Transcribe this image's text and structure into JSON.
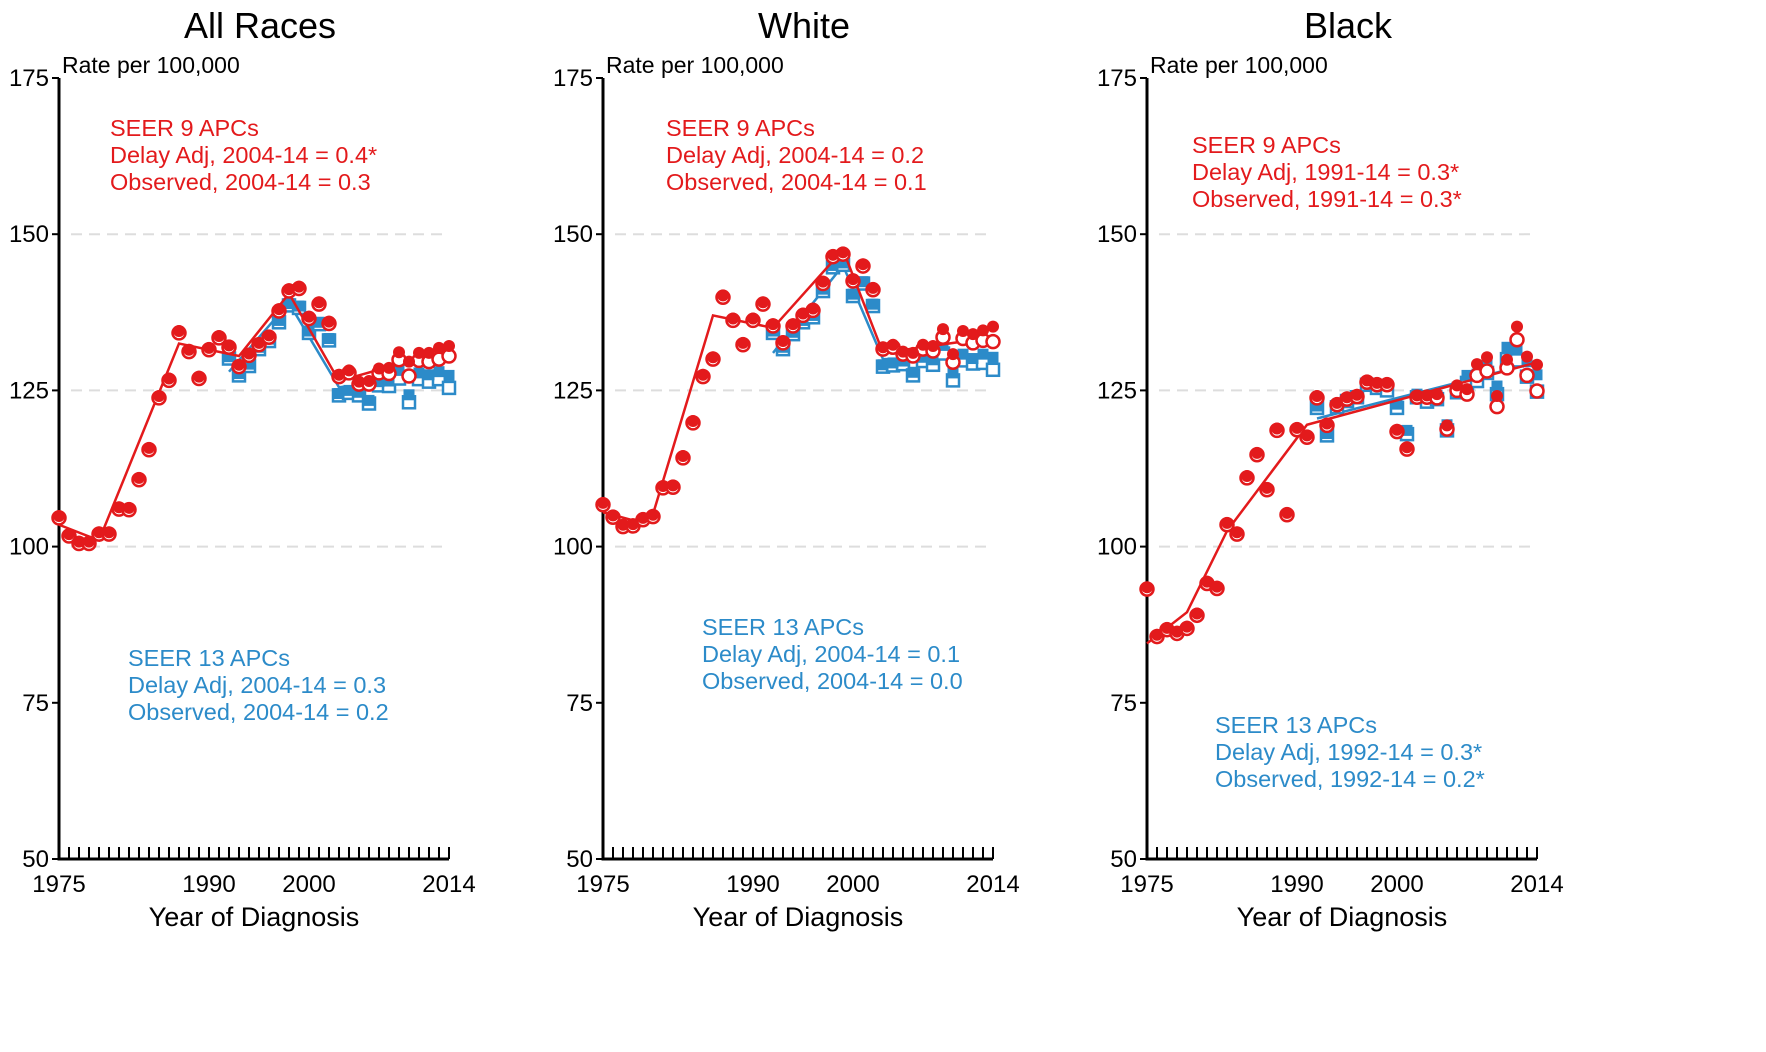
{
  "chart_data": [
    {
      "type": "scatter",
      "title": "All Races",
      "ylabel": "Rate per 100,000",
      "xlabel": "Year of Diagnosis",
      "xlim": [
        1975,
        2014
      ],
      "ylim": [
        50,
        175
      ],
      "xticks": [
        "1975",
        "1990",
        "2000",
        "2014"
      ],
      "yticks": [
        "50",
        "75",
        "100",
        "125",
        "150",
        "175"
      ],
      "grid": "dashed horizontal at 100, 125, 150",
      "annotations": {
        "seer9": [
          "SEER 9 APCs",
          "Delay Adj, 2004-14 = 0.4*",
          "Observed, 2004-14 = 0.3"
        ],
        "seer13": [
          "SEER 13 APCs",
          "Delay Adj, 2004-14 = 0.3",
          "Observed, 2004-14 = 0.2"
        ]
      },
      "seer9_delay_adj": {
        "x": [
          1975,
          1976,
          1977,
          1978,
          1979,
          1980,
          1981,
          1982,
          1983,
          1984,
          1985,
          1986,
          1987,
          1988,
          1989,
          1990,
          1991,
          1992,
          1993,
          1994,
          1995,
          1996,
          1997,
          1998,
          1999,
          2000,
          2001,
          2002,
          2003,
          2004,
          2005,
          2006,
          2007,
          2008,
          2009,
          2010,
          2011,
          2012,
          2013,
          2014
        ],
        "y": [
          104.9,
          102.0,
          100.8,
          100.8,
          102.3,
          102.3,
          106.3,
          106.2,
          111.0,
          115.8,
          124.1,
          126.9,
          134.5,
          131.5,
          127.2,
          131.8,
          133.7,
          132.2,
          129.1,
          130.9,
          132.6,
          133.8,
          138.0,
          141.2,
          141.6,
          136.8,
          139.1,
          136.0,
          127.5,
          128.2,
          126.4,
          126.5,
          128.5,
          128.6,
          131.1,
          129.6,
          131.0,
          131.0,
          131.8,
          132.1
        ]
      },
      "seer9_observed": {
        "x": [
          1975,
          1976,
          1977,
          1978,
          1979,
          1980,
          1981,
          1982,
          1983,
          1984,
          1985,
          1986,
          1987,
          1988,
          1989,
          1990,
          1991,
          1992,
          1993,
          1994,
          1995,
          1996,
          1997,
          1998,
          1999,
          2000,
          2001,
          2002,
          2003,
          2004,
          2005,
          2006,
          2007,
          2008,
          2009,
          2010,
          2011,
          2012,
          2013,
          2014
        ],
        "y": [
          104.6,
          101.7,
          100.5,
          100.5,
          102.0,
          102.0,
          106.0,
          105.9,
          110.7,
          115.5,
          123.8,
          126.6,
          134.2,
          131.2,
          126.9,
          131.5,
          133.4,
          131.9,
          128.8,
          130.6,
          132.3,
          133.5,
          137.7,
          140.9,
          141.3,
          136.5,
          138.8,
          135.7,
          127.2,
          127.8,
          126.0,
          126.0,
          127.8,
          127.7,
          129.9,
          127.3,
          129.8,
          129.6,
          130.0,
          130.5
        ]
      },
      "seer9_fit": {
        "x": [
          1975,
          1979,
          1987,
          1993,
          1998,
          2003,
          2014
        ],
        "y": [
          103.5,
          101.0,
          132.5,
          130.5,
          140.5,
          126.5,
          131.5
        ]
      },
      "seer13_delay_adj": {
        "x": [
          1992,
          1993,
          1994,
          1995,
          1996,
          1997,
          1998,
          1999,
          2000,
          2001,
          2002,
          2003,
          2004,
          2005,
          2006,
          2007,
          2008,
          2009,
          2010,
          2011,
          2012,
          2013,
          2014
        ],
        "y": [
          130.4,
          127.7,
          129.2,
          131.9,
          133.2,
          136.2,
          138.9,
          138.5,
          134.5,
          135.9,
          133.3,
          124.5,
          125.0,
          124.7,
          123.4,
          126.4,
          126.5,
          128.2,
          124.3,
          127.8,
          127.5,
          128.0,
          127.4
        ]
      },
      "seer13_observed": {
        "x": [
          1992,
          1993,
          1994,
          1995,
          1996,
          1997,
          1998,
          1999,
          2000,
          2001,
          2002,
          2003,
          2004,
          2005,
          2006,
          2007,
          2008,
          2009,
          2010,
          2011,
          2012,
          2013,
          2014
        ],
        "y": [
          130.1,
          127.4,
          128.9,
          131.6,
          132.9,
          135.9,
          138.6,
          138.2,
          134.2,
          135.6,
          133.0,
          124.2,
          124.6,
          124.2,
          122.9,
          125.8,
          125.7,
          126.9,
          123.1,
          126.8,
          126.4,
          126.8,
          125.4
        ]
      },
      "seer13_fit": {
        "x": [
          1992,
          1998,
          2003,
          2014
        ],
        "y": [
          128.0,
          139.0,
          125.5,
          127.0
        ]
      }
    },
    {
      "type": "scatter",
      "title": "White",
      "ylabel": "Rate per 100,000",
      "xlabel": "Year of Diagnosis",
      "xlim": [
        1975,
        2014
      ],
      "ylim": [
        50,
        175
      ],
      "xticks": [
        "1975",
        "1990",
        "2000",
        "2014"
      ],
      "yticks": [
        "50",
        "75",
        "100",
        "125",
        "150",
        "175"
      ],
      "grid": "dashed horizontal at 100, 125, 150",
      "annotations": {
        "seer9": [
          "SEER 9 APCs",
          "Delay Adj, 2004-14 = 0.2",
          "Observed, 2004-14 = 0.1"
        ],
        "seer13": [
          "SEER 13 APCs",
          "Delay Adj, 2004-14 = 0.1",
          "Observed, 2004-14 = 0.0"
        ]
      },
      "seer9_delay_adj": {
        "x": [
          1975,
          1976,
          1977,
          1978,
          1979,
          1980,
          1981,
          1982,
          1983,
          1984,
          1985,
          1986,
          1987,
          1988,
          1989,
          1990,
          1991,
          1992,
          1993,
          1994,
          1995,
          1996,
          1997,
          1998,
          1999,
          2000,
          2001,
          2002,
          2003,
          2004,
          2005,
          2006,
          2007,
          2008,
          2009,
          2010,
          2011,
          2012,
          2013,
          2014
        ],
        "y": [
          107.0,
          105.0,
          103.5,
          103.6,
          104.6,
          105.1,
          109.7,
          109.8,
          114.5,
          120.1,
          127.5,
          130.3,
          140.2,
          136.5,
          132.6,
          136.5,
          139.1,
          135.6,
          132.9,
          135.6,
          137.3,
          138.1,
          142.4,
          146.7,
          147.1,
          142.8,
          145.2,
          141.4,
          131.9,
          132.3,
          131.2,
          131.0,
          132.3,
          132.1,
          134.8,
          130.8,
          134.5,
          134.0,
          134.6,
          135.2
        ]
      },
      "seer9_observed": {
        "x": [
          1975,
          1976,
          1977,
          1978,
          1979,
          1980,
          1981,
          1982,
          1983,
          1984,
          1985,
          1986,
          1987,
          1988,
          1989,
          1990,
          1991,
          1992,
          1993,
          1994,
          1995,
          1996,
          1997,
          1998,
          1999,
          2000,
          2001,
          2002,
          2003,
          2004,
          2005,
          2006,
          2007,
          2008,
          2009,
          2010,
          2011,
          2012,
          2013,
          2014
        ],
        "y": [
          106.7,
          104.7,
          103.2,
          103.3,
          104.3,
          104.8,
          109.4,
          109.5,
          114.2,
          119.8,
          127.2,
          130.0,
          139.9,
          136.2,
          132.3,
          136.2,
          138.8,
          135.3,
          132.6,
          135.3,
          137.0,
          137.8,
          142.1,
          146.4,
          146.8,
          142.5,
          144.9,
          141.1,
          131.6,
          131.9,
          130.8,
          130.5,
          131.6,
          131.3,
          133.5,
          129.5,
          133.3,
          132.6,
          133.0,
          132.8
        ]
      },
      "seer9_fit": {
        "x": [
          1975,
          1978,
          1980,
          1986,
          1992,
          1999,
          2003,
          2014
        ],
        "y": [
          105.5,
          104.2,
          105.2,
          137.0,
          135.0,
          147.5,
          131.0,
          133.5
        ]
      },
      "seer13_delay_adj": {
        "x": [
          1992,
          1993,
          1994,
          1995,
          1996,
          1997,
          1998,
          1999,
          2000,
          2001,
          2002,
          2003,
          2004,
          2005,
          2006,
          2007,
          2008,
          2009,
          2010,
          2011,
          2012,
          2013,
          2014
        ],
        "y": [
          134.5,
          131.9,
          134.3,
          136.2,
          137.0,
          141.2,
          145.0,
          145.4,
          140.4,
          142.4,
          138.8,
          129.1,
          129.4,
          129.7,
          127.9,
          130.3,
          129.9,
          132.2,
          127.8,
          130.8,
          130.1,
          130.8,
          130.3
        ]
      },
      "seer13_observed": {
        "x": [
          1992,
          1993,
          1994,
          1995,
          1996,
          1997,
          1998,
          1999,
          2000,
          2001,
          2002,
          2003,
          2004,
          2005,
          2006,
          2007,
          2008,
          2009,
          2010,
          2011,
          2012,
          2013,
          2014
        ],
        "y": [
          134.2,
          131.6,
          134.0,
          135.9,
          136.7,
          140.9,
          144.7,
          145.1,
          140.1,
          142.1,
          138.5,
          128.8,
          129.0,
          129.2,
          127.4,
          129.7,
          129.1,
          130.9,
          126.6,
          129.8,
          129.3,
          129.4,
          128.3
        ]
      },
      "seer13_fit": {
        "x": [
          1992,
          1999,
          2003,
          2014
        ],
        "y": [
          131.0,
          145.0,
          130.0,
          130.5
        ]
      }
    },
    {
      "type": "scatter",
      "title": "Black",
      "ylabel": "Rate per 100,000",
      "xlabel": "Year of Diagnosis",
      "xlim": [
        1975,
        2014
      ],
      "ylim": [
        50,
        175
      ],
      "xticks": [
        "1975",
        "1990",
        "2000",
        "2014"
      ],
      "yticks": [
        "50",
        "75",
        "100",
        "125",
        "150",
        "175"
      ],
      "grid": "dashed horizontal at 100, 125, 150",
      "annotations": {
        "seer9": [
          "SEER 9 APCs",
          "Delay Adj, 1991-14 = 0.3*",
          "Observed, 1991-14 = 0.3*"
        ],
        "seer13": [
          "SEER 13 APCs",
          "Delay Adj, 1992-14 = 0.3*",
          "Observed, 1992-14 = 0.2*"
        ]
      },
      "seer9_delay_adj": {
        "x": [
          1975,
          1976,
          1977,
          1978,
          1979,
          1980,
          1981,
          1982,
          1983,
          1984,
          1985,
          1986,
          1987,
          1988,
          1989,
          1990,
          1991,
          1992,
          1993,
          1994,
          1995,
          1996,
          1997,
          1998,
          1999,
          2000,
          2001,
          2002,
          2003,
          2004,
          2005,
          2006,
          2007,
          2008,
          2009,
          2010,
          2011,
          2012,
          2013,
          2014
        ],
        "y": [
          93.5,
          85.9,
          87.0,
          86.4,
          87.2,
          89.3,
          94.4,
          93.6,
          103.8,
          102.3,
          111.3,
          115.0,
          109.4,
          118.9,
          105.4,
          119.0,
          117.8,
          124.1,
          119.7,
          123.0,
          123.9,
          124.3,
          126.6,
          126.2,
          126.2,
          118.7,
          115.9,
          124.2,
          124.2,
          124.4,
          119.4,
          125.8,
          125.2,
          129.2,
          130.3,
          124.1,
          129.9,
          135.2,
          130.4,
          129.1
        ]
      },
      "seer9_observed": {
        "x": [
          1975,
          1976,
          1977,
          1978,
          1979,
          1980,
          1981,
          1982,
          1983,
          1984,
          1985,
          1986,
          1987,
          1988,
          1989,
          1990,
          1991,
          1992,
          1993,
          1994,
          1995,
          1996,
          1997,
          1998,
          1999,
          2000,
          2001,
          2002,
          2003,
          2004,
          2005,
          2006,
          2007,
          2008,
          2009,
          2010,
          2011,
          2012,
          2013,
          2014
        ],
        "y": [
          93.2,
          85.6,
          86.7,
          86.1,
          86.9,
          89.0,
          94.1,
          93.3,
          103.5,
          102.0,
          111.0,
          114.7,
          109.1,
          118.6,
          105.1,
          118.7,
          117.5,
          123.8,
          119.4,
          122.7,
          123.6,
          124.0,
          126.3,
          125.9,
          125.9,
          118.4,
          115.6,
          123.9,
          123.9,
          123.8,
          118.8,
          125.0,
          124.4,
          127.4,
          128.1,
          122.4,
          128.6,
          133.1,
          127.4,
          124.9
        ]
      },
      "seer9_fit": {
        "x": [
          1975,
          1979,
          1983,
          1991,
          2014
        ],
        "y": [
          84.5,
          89.5,
          102.5,
          119.5,
          129.5
        ]
      },
      "seer13_delay_adj": {
        "x": [
          1992,
          1993,
          1994,
          1995,
          1996,
          1997,
          1998,
          1999,
          2000,
          2001,
          2002,
          2003,
          2004,
          2005,
          2006,
          2007,
          2008,
          2009,
          2010,
          2011,
          2012,
          2013,
          2014
        ],
        "y": [
          122.5,
          118.1,
          122.6,
          123.6,
          124.2,
          126.2,
          125.9,
          125.8,
          122.8,
          118.6,
          124.4,
          124.0,
          124.2,
          119.5,
          125.5,
          127.4,
          127.6,
          129.2,
          125.7,
          131.9,
          131.7,
          129.6,
          127.5
        ]
      },
      "seer13_observed": {
        "x": [
          1992,
          1993,
          1994,
          1995,
          1996,
          1997,
          1998,
          1999,
          2000,
          2001,
          2002,
          2003,
          2004,
          2005,
          2006,
          2007,
          2008,
          2009,
          2010,
          2011,
          2012,
          2013,
          2014
        ],
        "y": [
          122.2,
          117.8,
          122.3,
          123.3,
          123.9,
          125.9,
          125.4,
          125.0,
          122.2,
          118.0,
          123.9,
          123.2,
          123.6,
          118.6,
          124.7,
          126.2,
          126.5,
          127.8,
          124.4,
          130.0,
          129.8,
          127.2,
          124.8
        ]
      },
      "seer13_fit": {
        "x": [
          1992,
          2014
        ],
        "y": [
          120.5,
          129.5
        ]
      }
    }
  ],
  "colors": {
    "seer9": "#e31a1c",
    "seer13": "#2c8bc9",
    "grid": "#dddddd",
    "axis": "#000000"
  }
}
